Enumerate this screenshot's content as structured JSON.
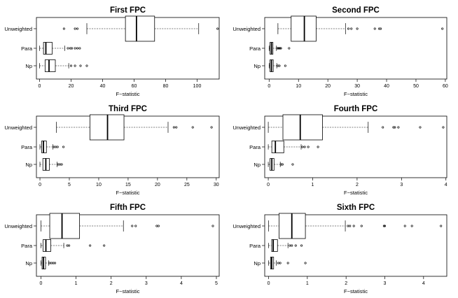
{
  "chart_data": [
    {
      "type": "boxplot",
      "title": "First FPC",
      "xlabel": "F−statistic",
      "xlim": [
        -2,
        114
      ],
      "ticks": [
        0,
        20,
        40,
        60,
        80,
        100
      ],
      "tick_labels": [
        "0",
        "20",
        "40",
        "60",
        "80",
        "100"
      ],
      "groups": [
        {
          "name": "Unweighted",
          "whisker_low": 30,
          "q1": 54.5,
          "median": 61.5,
          "q3": 73,
          "whisker_high": 101,
          "outliers": [
            15.5,
            22.5,
            24,
            113
          ]
        },
        {
          "name": "Para",
          "whisker_low": 0,
          "q1": 2.5,
          "median": 4,
          "q3": 8,
          "whisker_high": 16,
          "outliers": [
            18,
            19.5,
            20.5,
            22.5,
            24,
            25.5
          ]
        },
        {
          "name": "Np",
          "whisker_low": 0,
          "q1": 3.5,
          "median": 6,
          "q3": 10,
          "whisker_high": 18.5,
          "outliers": [
            20,
            22.5,
            26,
            30
          ]
        }
      ]
    },
    {
      "type": "boxplot",
      "title": "Second FPC",
      "xlabel": "F−statistic",
      "xlim": [
        -1.5,
        60.5
      ],
      "ticks": [
        0,
        10,
        20,
        30,
        40,
        50,
        60
      ],
      "tick_labels": [
        "0",
        "10",
        "20",
        "30",
        "40",
        "50",
        "60"
      ],
      "groups": [
        {
          "name": "Unweighted",
          "whisker_low": 3,
          "q1": 7.5,
          "median": 12,
          "q3": 16,
          "whisker_high": 26,
          "outliers": [
            27,
            28,
            30,
            36,
            37.5,
            38,
            59
          ]
        },
        {
          "name": "Para",
          "whisker_low": 0,
          "q1": 0.3,
          "median": 0.8,
          "q3": 1.3,
          "whisker_high": 2.5,
          "outliers": [
            2.8,
            3.1,
            3.4,
            3.7,
            4,
            6.8
          ]
        },
        {
          "name": "Np",
          "whisker_low": 0,
          "q1": 0.3,
          "median": 0.8,
          "q3": 1.4,
          "whisker_high": 2.6,
          "outliers": [
            3,
            3.5,
            5.5
          ]
        }
      ]
    },
    {
      "type": "boxplot",
      "title": "Third FPC",
      "xlabel": "F−statistic",
      "xlim": [
        -0.6,
        30.5
      ],
      "ticks": [
        0,
        5,
        10,
        15,
        20,
        25,
        30
      ],
      "tick_labels": [
        "0",
        "5",
        "10",
        "15",
        "20",
        "25",
        "30"
      ],
      "groups": [
        {
          "name": "Unweighted",
          "whisker_low": 2.8,
          "q1": 8.5,
          "median": 11.5,
          "q3": 14.3,
          "whisker_high": 21.8,
          "outliers": [
            22.8,
            23.2,
            26,
            29.2
          ]
        },
        {
          "name": "Para",
          "whisker_low": 0,
          "q1": 0.3,
          "median": 0.6,
          "q3": 1.1,
          "whisker_high": 2.2,
          "outliers": [
            2.4,
            2.7,
            3,
            4
          ]
        },
        {
          "name": "Np",
          "whisker_low": 0,
          "q1": 0.5,
          "median": 1,
          "q3": 1.6,
          "whisker_high": 2.9,
          "outliers": [
            3.1,
            3.4,
            3.7
          ]
        }
      ]
    },
    {
      "type": "boxplot",
      "title": "Fourth FPC",
      "xlabel": "F−statistic",
      "xlim": [
        -0.08,
        4.02
      ],
      "ticks": [
        0,
        1,
        2,
        3,
        4
      ],
      "tick_labels": [
        "0",
        "1",
        "2",
        "3",
        "4"
      ],
      "groups": [
        {
          "name": "Unweighted",
          "whisker_low": 0,
          "q1": 0.33,
          "median": 0.72,
          "q3": 1.22,
          "whisker_high": 2.25,
          "outliers": [
            2.58,
            2.82,
            2.85,
            2.93,
            3.42,
            3.94
          ]
        },
        {
          "name": "Para",
          "whisker_low": 0,
          "q1": 0.08,
          "median": 0.16,
          "q3": 0.35,
          "whisker_high": 0.74,
          "outliers": [
            0.77,
            0.82,
            0.9,
            1.12
          ]
        },
        {
          "name": "Np",
          "whisker_low": 0,
          "q1": 0.04,
          "median": 0.08,
          "q3": 0.13,
          "whisker_high": 0.27,
          "outliers": [
            0.29,
            0.32,
            0.55
          ]
        }
      ]
    },
    {
      "type": "boxplot",
      "title": "Fifth FPC",
      "xlabel": "F−statistic",
      "xlim": [
        -0.13,
        5.08
      ],
      "ticks": [
        0,
        1,
        2,
        3,
        4,
        5
      ],
      "tick_labels": [
        "0",
        "1",
        "2",
        "3",
        "4",
        "5"
      ],
      "groups": [
        {
          "name": "Unweighted",
          "whisker_low": 0,
          "q1": 0.25,
          "median": 0.6,
          "q3": 1.1,
          "whisker_high": 2.35,
          "outliers": [
            2.6,
            2.7,
            3.3,
            3.35,
            4.9
          ]
        },
        {
          "name": "Para",
          "whisker_low": 0,
          "q1": 0.06,
          "median": 0.14,
          "q3": 0.28,
          "whisker_high": 0.65,
          "outliers": [
            0.75,
            0.8,
            1.4,
            1.8
          ]
        },
        {
          "name": "Np",
          "whisker_low": 0,
          "q1": 0.03,
          "median": 0.07,
          "q3": 0.13,
          "whisker_high": 0.22,
          "outliers": [
            0.25,
            0.3,
            0.35,
            0.4
          ]
        }
      ]
    },
    {
      "type": "boxplot",
      "title": "Sixth FPC",
      "xlabel": "F−statistic",
      "xlim": [
        -0.1,
        4.6
      ],
      "ticks": [
        0,
        1,
        2,
        3,
        4
      ],
      "tick_labels": [
        "0",
        "1",
        "2",
        "3",
        "4"
      ],
      "groups": [
        {
          "name": "Unweighted",
          "whisker_low": 0,
          "q1": 0.27,
          "median": 0.6,
          "q3": 0.95,
          "whisker_high": 1.98,
          "outliers": [
            2.05,
            2.1,
            2.2,
            2.4,
            2.98,
            3,
            3.52,
            3.7,
            4.45
          ]
        },
        {
          "name": "Para",
          "whisker_low": 0,
          "q1": 0.08,
          "median": 0.12,
          "q3": 0.23,
          "whisker_high": 0.5,
          "outliers": [
            0.55,
            0.6,
            0.7,
            0.85
          ]
        },
        {
          "name": "Np",
          "whisker_low": 0,
          "q1": 0.05,
          "median": 0.08,
          "q3": 0.13,
          "whisker_high": 0.2,
          "outliers": [
            0.25,
            0.3,
            0.5,
            0.95
          ]
        }
      ]
    }
  ]
}
